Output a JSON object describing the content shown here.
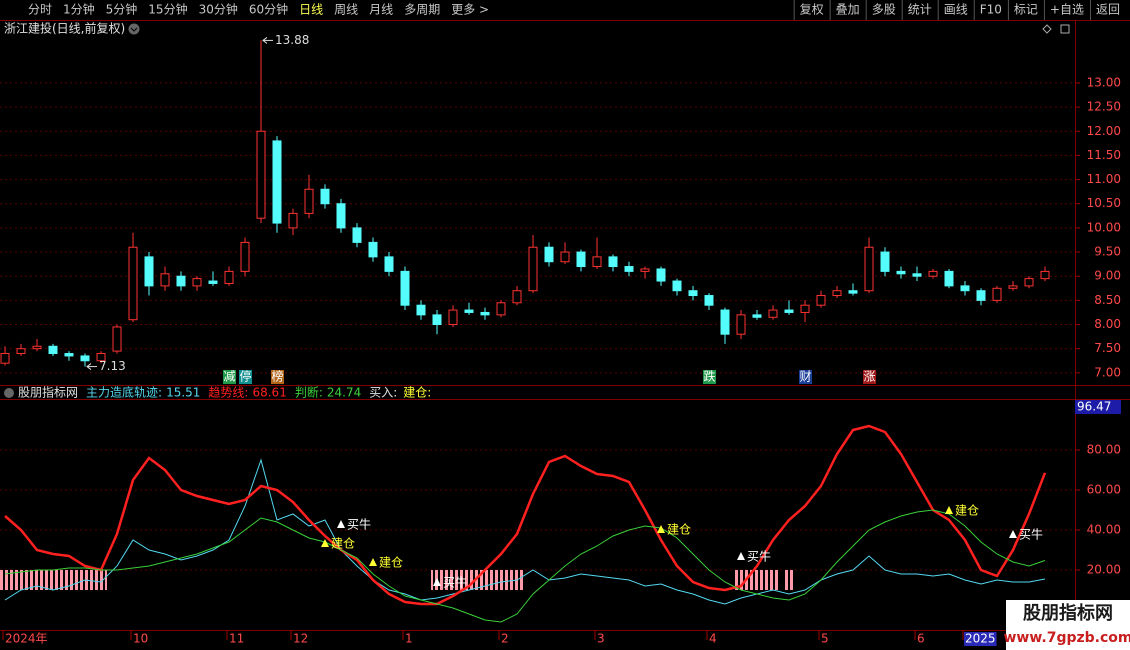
{
  "toolbar": {
    "periods": [
      "分时",
      "1分钟",
      "5分钟",
      "15分钟",
      "30分钟",
      "60分钟",
      "日线",
      "周线",
      "月线",
      "多周期",
      "更多 >"
    ],
    "active_period": 6,
    "tools": [
      "复权",
      "叠加",
      "多股",
      "统计",
      "画线",
      "F10",
      "标记",
      "+自选",
      "返回"
    ]
  },
  "chart_data": [
    {
      "type": "candlestick",
      "title": "浙江建投(日线,前复权)",
      "up_color": "#ff3232",
      "down_color": "#54fcfc",
      "ylim": [
        6.79,
        13.93
      ],
      "yticks": [
        {
          "value": 7,
          "label": "7.00"
        },
        {
          "value": 7.5,
          "label": "7.50"
        },
        {
          "value": 8,
          "label": "8.00"
        },
        {
          "value": 8.5,
          "label": "8.50"
        },
        {
          "value": 9,
          "label": "9.00"
        },
        {
          "value": 9.5,
          "label": "9.50"
        },
        {
          "value": 10,
          "label": "10.00"
        },
        {
          "value": 10.5,
          "label": "10.50"
        },
        {
          "value": 11,
          "label": "11.00"
        },
        {
          "value": 11.5,
          "label": "11.50"
        },
        {
          "value": 12,
          "label": "12.00"
        },
        {
          "value": 12.5,
          "label": "12.50"
        },
        {
          "value": 13,
          "label": "13.00"
        }
      ],
      "grid": true,
      "ohlc": [
        [
          7.2,
          7.55,
          7.15,
          7.4
        ],
        [
          7.4,
          7.6,
          7.35,
          7.5
        ],
        [
          7.5,
          7.7,
          7.45,
          7.55
        ],
        [
          7.55,
          7.6,
          7.35,
          7.4
        ],
        [
          7.4,
          7.45,
          7.25,
          7.35
        ],
        [
          7.35,
          7.4,
          7.13,
          7.25
        ],
        [
          7.25,
          7.45,
          7.2,
          7.4
        ],
        [
          7.45,
          8.0,
          7.4,
          7.95
        ],
        [
          8.1,
          9.9,
          8.05,
          9.6
        ],
        [
          9.4,
          9.5,
          8.6,
          8.8
        ],
        [
          8.8,
          9.2,
          8.7,
          9.05
        ],
        [
          9.0,
          9.1,
          8.7,
          8.8
        ],
        [
          8.8,
          9.0,
          8.7,
          8.95
        ],
        [
          8.9,
          9.1,
          8.8,
          8.85
        ],
        [
          8.85,
          9.2,
          8.8,
          9.1
        ],
        [
          9.1,
          9.8,
          9.0,
          9.7
        ],
        [
          10.2,
          13.88,
          10.1,
          12.0
        ],
        [
          11.8,
          11.9,
          9.9,
          10.1
        ],
        [
          10.0,
          10.4,
          9.85,
          10.3
        ],
        [
          10.3,
          11.1,
          10.2,
          10.8
        ],
        [
          10.8,
          10.9,
          10.4,
          10.5
        ],
        [
          10.5,
          10.6,
          9.9,
          10.0
        ],
        [
          10.0,
          10.1,
          9.6,
          9.7
        ],
        [
          9.7,
          9.8,
          9.3,
          9.4
        ],
        [
          9.4,
          9.5,
          9.0,
          9.1
        ],
        [
          9.1,
          9.2,
          8.3,
          8.4
        ],
        [
          8.4,
          8.5,
          8.1,
          8.2
        ],
        [
          8.2,
          8.3,
          7.8,
          8.0
        ],
        [
          8.0,
          8.4,
          7.95,
          8.3
        ],
        [
          8.3,
          8.45,
          8.2,
          8.25
        ],
        [
          8.25,
          8.35,
          8.1,
          8.2
        ],
        [
          8.2,
          8.5,
          8.15,
          8.45
        ],
        [
          8.45,
          8.8,
          8.4,
          8.7
        ],
        [
          8.7,
          9.85,
          8.65,
          9.6
        ],
        [
          9.6,
          9.7,
          9.2,
          9.3
        ],
        [
          9.3,
          9.7,
          9.25,
          9.5
        ],
        [
          9.5,
          9.55,
          9.1,
          9.2
        ],
        [
          9.2,
          9.8,
          9.15,
          9.4
        ],
        [
          9.4,
          9.45,
          9.1,
          9.2
        ],
        [
          9.2,
          9.3,
          9.0,
          9.1
        ],
        [
          9.1,
          9.2,
          8.95,
          9.15
        ],
        [
          9.15,
          9.2,
          8.8,
          8.9
        ],
        [
          8.9,
          8.95,
          8.6,
          8.7
        ],
        [
          8.7,
          8.8,
          8.5,
          8.6
        ],
        [
          8.6,
          8.65,
          8.3,
          8.4
        ],
        [
          8.3,
          8.35,
          7.6,
          7.8
        ],
        [
          7.8,
          8.3,
          7.7,
          8.2
        ],
        [
          8.2,
          8.3,
          8.1,
          8.15
        ],
        [
          8.15,
          8.4,
          8.1,
          8.3
        ],
        [
          8.3,
          8.5,
          8.2,
          8.25
        ],
        [
          8.25,
          8.5,
          8.05,
          8.4
        ],
        [
          8.4,
          8.7,
          8.35,
          8.6
        ],
        [
          8.6,
          8.8,
          8.55,
          8.7
        ],
        [
          8.7,
          8.85,
          8.6,
          8.65
        ],
        [
          8.7,
          9.8,
          8.65,
          9.6
        ],
        [
          9.5,
          9.6,
          9.0,
          9.1
        ],
        [
          9.1,
          9.2,
          8.95,
          9.05
        ],
        [
          9.05,
          9.2,
          8.9,
          9.0
        ],
        [
          9.0,
          9.15,
          8.95,
          9.1
        ],
        [
          9.1,
          9.15,
          8.75,
          8.8
        ],
        [
          8.8,
          8.9,
          8.6,
          8.7
        ],
        [
          8.7,
          8.75,
          8.4,
          8.5
        ],
        [
          8.5,
          8.8,
          8.45,
          8.75
        ],
        [
          8.75,
          8.9,
          8.7,
          8.8
        ],
        [
          8.8,
          9.0,
          8.75,
          8.95
        ],
        [
          8.95,
          9.2,
          8.9,
          9.1
        ]
      ],
      "events": [
        {
          "label": "减",
          "index": 14,
          "color": "#1f9a4a"
        },
        {
          "label": "停",
          "index": 15,
          "color": "#0f8f8f"
        },
        {
          "label": "榜",
          "index": 17,
          "color": "#b0651a"
        },
        {
          "label": "跌",
          "index": 44,
          "color": "#1f9a4a"
        },
        {
          "label": "财",
          "index": 50,
          "color": "#1c3f9a"
        },
        {
          "label": "涨",
          "index": 54,
          "color": "#a01818"
        }
      ]
    },
    {
      "type": "line",
      "title": "股朋指标网",
      "ylim": [
        -10,
        105
      ],
      "yticks": [
        {
          "value": 20,
          "label": "20.00"
        },
        {
          "value": 40,
          "label": "40.00"
        },
        {
          "value": 60,
          "label": "60.00"
        },
        {
          "value": 80,
          "label": "80.00"
        }
      ],
      "grid": true,
      "marker": 96.47,
      "series": [
        {
          "name": "主力造底轨迹:",
          "color": "#54d8f0",
          "values": [
            5,
            10,
            12,
            10,
            12,
            15,
            14,
            22,
            35,
            30,
            28,
            25,
            27,
            30,
            35,
            52,
            75,
            45,
            48,
            42,
            45,
            30,
            22,
            15,
            10,
            8,
            5,
            6,
            8,
            10,
            12,
            14,
            15,
            20,
            15,
            16,
            18,
            17,
            16,
            15,
            12,
            13,
            10,
            8,
            5,
            3,
            6,
            8,
            10,
            8,
            10,
            15,
            18,
            20,
            27,
            20,
            18,
            18,
            17,
            18,
            15,
            13,
            15,
            14,
            14,
            15.51
          ]
        },
        {
          "name": "趋势线:",
          "color": "#ff2020",
          "values": [
            47,
            40,
            30,
            28,
            27,
            22,
            20,
            38,
            65,
            76,
            70,
            60,
            57,
            55,
            53,
            55,
            62,
            60,
            54,
            45,
            37,
            30,
            25,
            15,
            8,
            4,
            3,
            3,
            7,
            12,
            20,
            28,
            38,
            58,
            74,
            77,
            72,
            68,
            67,
            64,
            50,
            35,
            22,
            14,
            11,
            10,
            12,
            22,
            35,
            45,
            52,
            62,
            78,
            90,
            92,
            89,
            78,
            64,
            50,
            45,
            35,
            20,
            17,
            30,
            48,
            68.61
          ]
        },
        {
          "name": "判断:",
          "color": "#3ad03a",
          "values": [
            18,
            19,
            20,
            20,
            21,
            21,
            20,
            20,
            21,
            22,
            24,
            26,
            28,
            31,
            34,
            40,
            46,
            44,
            40,
            36,
            34,
            30,
            26,
            18,
            12,
            7,
            5,
            3,
            1,
            -2,
            -5,
            -6,
            -2,
            8,
            15,
            22,
            28,
            32,
            37,
            40,
            42,
            41,
            36,
            28,
            20,
            14,
            10,
            8,
            6,
            5,
            8,
            15,
            24,
            32,
            40,
            44,
            47,
            49,
            50,
            48,
            42,
            34,
            28,
            24,
            22,
            24.74
          ]
        }
      ],
      "buy_legend": "买入:",
      "buy_color": "#ff9aa8",
      "buy_zones": [
        [
          0,
          6
        ],
        [
          27,
          32
        ],
        [
          46,
          48
        ],
        [
          49,
          49
        ]
      ],
      "signal_legend": "建仓:",
      "signals": [
        {
          "label": "建仓",
          "index": 20,
          "value": 33,
          "color": "#ffff33"
        },
        {
          "label": "建仓",
          "index": 23,
          "value": 23.5,
          "color": "#ffff33"
        },
        {
          "label": "建仓",
          "index": 41,
          "value": 40,
          "color": "#ffff33"
        },
        {
          "label": "建仓",
          "index": 59,
          "value": 49.5,
          "color": "#ffff33"
        },
        {
          "label": "买牛",
          "index": 21,
          "value": 42.5,
          "color": "#ffffff"
        },
        {
          "label": "买牛",
          "index": 27,
          "value": 13.5,
          "color": "#ffffff"
        },
        {
          "label": "买牛",
          "index": 46,
          "value": 26.5,
          "color": "#ffffff"
        },
        {
          "label": "买牛",
          "index": 63,
          "value": 37.5,
          "color": "#ffffff"
        }
      ],
      "x_labels": [
        {
          "label": "2024年",
          "index": 0
        },
        {
          "label": "10",
          "index": 8
        },
        {
          "label": "11",
          "index": 14
        },
        {
          "label": "12",
          "index": 18
        },
        {
          "label": "1",
          "index": 25
        },
        {
          "label": "2",
          "index": 31
        },
        {
          "label": "3",
          "index": 37
        },
        {
          "label": "4",
          "index": 44
        },
        {
          "label": "5",
          "index": 51
        },
        {
          "label": "6",
          "index": 57
        },
        {
          "label": "2025",
          "index": 60,
          "highlight": "#2a2ab8"
        }
      ]
    }
  ],
  "watermark": {
    "title": "股朋指标网",
    "url": "www.7gpzb.com"
  }
}
